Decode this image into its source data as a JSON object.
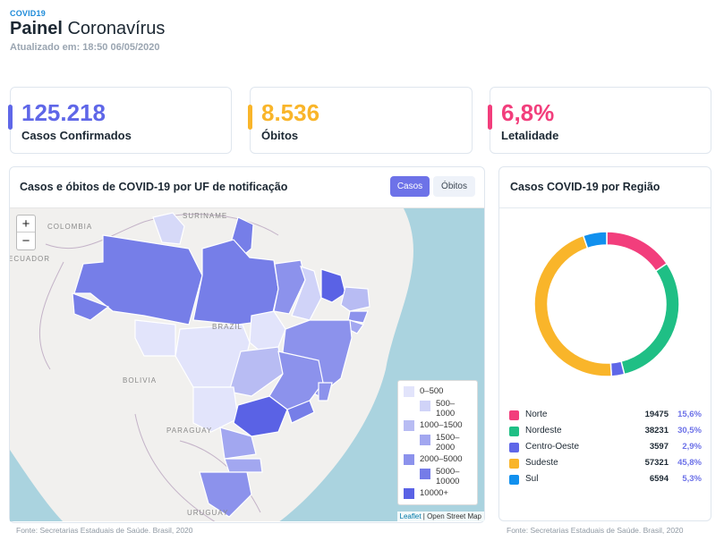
{
  "header": {
    "tag": "COVID19",
    "title_bold": "Painel",
    "title_rest": "Coronavírus",
    "updated": "Atualizado em: 18:50 06/05/2020"
  },
  "cards": [
    {
      "value": "125.218",
      "label": "Casos Confirmados",
      "color": "#5f67e8"
    },
    {
      "value": "8.536",
      "label": "Óbitos",
      "color": "#f9b52a"
    },
    {
      "value": "6,8%",
      "label": "Letalidade",
      "color": "#f23e7c"
    }
  ],
  "map_panel": {
    "title": "Casos e óbitos de COVID-19 por UF de notificação",
    "toggle_cases": "Casos",
    "toggle_deaths": "Óbitos",
    "zoom_in": "+",
    "zoom_out": "−",
    "labels": [
      "COLOMBIA",
      "SURINAME",
      "ECUADOR",
      "BRAZIL",
      "BOLIVIA",
      "PARAGUAY",
      "URUGUAY"
    ],
    "legend": [
      "0–500",
      "500–1000",
      "1000–1500",
      "1500–2000",
      "2000–5000",
      "5000–10000",
      "10000+"
    ],
    "legend_colors": [
      "#e2e4fb",
      "#d0d3f8",
      "#b8bcf3",
      "#a2a7f0",
      "#8c92ec",
      "#757ce8",
      "#5a62e5"
    ],
    "attribution_leaflet": "Leaflet",
    "attribution_osm": "Open Street Map",
    "source": "Fonte: Secretarias Estaduais de Saúde. Brasil, 2020"
  },
  "region_panel": {
    "title": "Casos COVID-19 por Região",
    "source": "Fonte: Secretarias Estaduais de Saúde. Brasil, 2020"
  },
  "chart_data": {
    "type": "pie",
    "title": "Casos COVID-19 por Região",
    "categories": [
      "Norte",
      "Nordeste",
      "Centro-Oeste",
      "Sudeste",
      "Sul"
    ],
    "values": [
      19475,
      38231,
      3597,
      57321,
      6594
    ],
    "percent_labels": [
      "15,6%",
      "30,5%",
      "2,9%",
      "45,8%",
      "5,3%"
    ],
    "colors": [
      "#f23e7c",
      "#1fbf85",
      "#5f67e8",
      "#f9b52a",
      "#1190ee"
    ],
    "donut": true,
    "legend_position": "bottom"
  }
}
